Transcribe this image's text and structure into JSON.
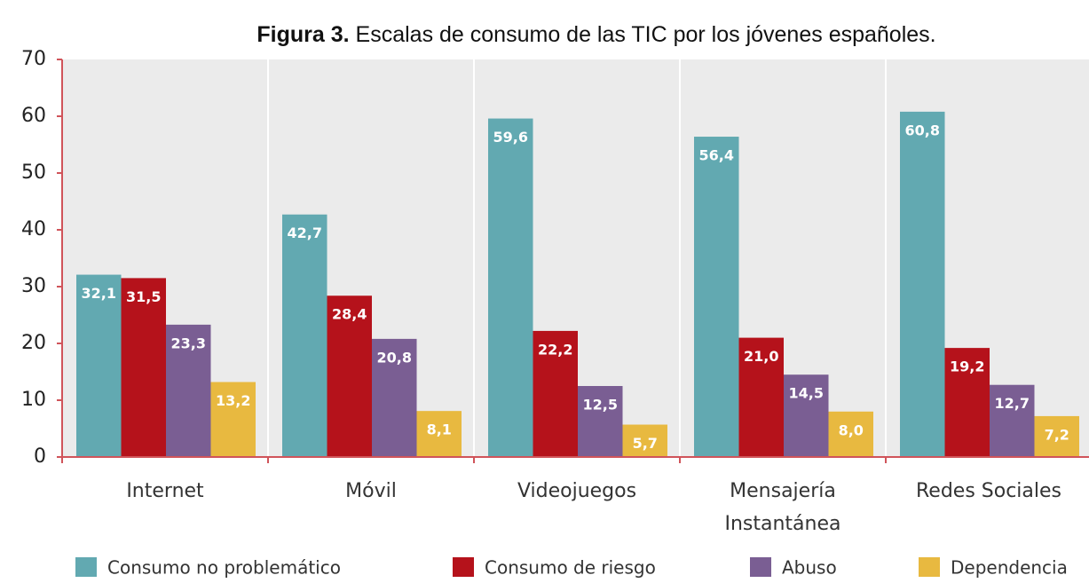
{
  "chart_data": {
    "type": "bar",
    "figure_label": "Figura 3.",
    "title": "Escalas de consumo de las TIC por los jóvenes españoles.",
    "categories": [
      "Internet",
      "Móvil",
      "Videojuegos",
      "Mensajería Instantánea",
      "Redes Sociales"
    ],
    "series": [
      {
        "name": "Consumo no problemático",
        "color": "#62a9b1",
        "values": [
          32.1,
          42.7,
          59.6,
          56.4,
          60.8
        ],
        "value_labels": [
          "32,1",
          "42,7",
          "59,6",
          "56,4",
          "60,8"
        ]
      },
      {
        "name": "Consumo de riesgo",
        "color": "#b5121b",
        "values": [
          31.5,
          28.4,
          22.2,
          21.0,
          19.2
        ],
        "value_labels": [
          "31,5",
          "28,4",
          "22,2",
          "21,0",
          "19,2"
        ]
      },
      {
        "name": "Abuso",
        "color": "#7a5e93",
        "values": [
          23.3,
          20.8,
          12.5,
          14.5,
          12.7
        ],
        "value_labels": [
          "23,3",
          "20,8",
          "12,5",
          "14,5",
          "12,7"
        ]
      },
      {
        "name": "Dependencia",
        "color": "#e8b940",
        "values": [
          13.2,
          8.1,
          5.7,
          8.0,
          7.2
        ],
        "value_labels": [
          "13,2",
          "8,1",
          "5,7",
          "8,0",
          "7,2"
        ]
      }
    ],
    "ylim": [
      0,
      70
    ],
    "yticks": [
      0,
      10,
      20,
      30,
      40,
      50,
      60,
      70
    ],
    "grid": false,
    "legend": "bottom"
  }
}
